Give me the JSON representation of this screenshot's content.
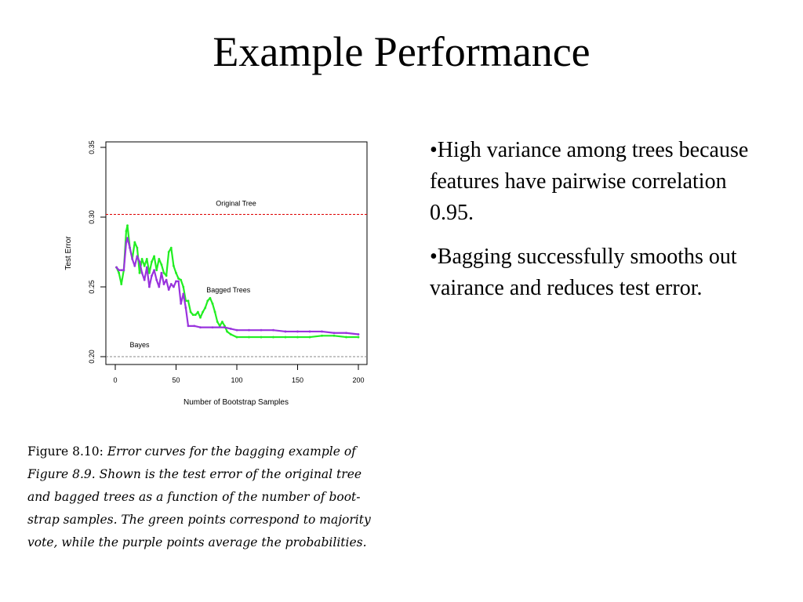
{
  "slide": {
    "title": "Example Performance"
  },
  "bullets": [
    "•High variance among trees because features have pairwise correlation 0.95.",
    "•Bagging successfully smooths out vairance and reduces test error."
  ],
  "caption": {
    "label": "Figure 8.10:",
    "lines": [
      "Error curves for the bagging example of",
      "Figure 8.9. Shown is the test error of the original tree",
      "and bagged trees as a function of the number of boot-",
      "strap samples. The green points correspond to majority",
      "vote, while the purple points average the probabilities."
    ]
  },
  "chart_data": {
    "type": "line",
    "xlabel": "Number of Bootstrap Samples",
    "ylabel": "Test Error",
    "xlim": [
      0,
      200
    ],
    "ylim": [
      0.2,
      0.35
    ],
    "xticks": [
      "0",
      "50",
      "100",
      "150",
      "200"
    ],
    "yticks": [
      "0.20",
      "0.25",
      "0.30",
      "0.35"
    ],
    "grid": false,
    "reference_lines": [
      {
        "label": "Original Tree",
        "value": 0.302,
        "color": "#dd0000",
        "style": "dashed"
      },
      {
        "label": "Bayes",
        "value": 0.2,
        "color": "#888888",
        "style": "dashed"
      }
    ],
    "annotations": [
      {
        "text": "Bagged Trees",
        "x": 75,
        "y": 0.246
      }
    ],
    "series": [
      {
        "color": "#22ee22",
        "x": [
          1,
          3,
          5,
          7,
          9,
          10,
          12,
          14,
          16,
          18,
          20,
          22,
          24,
          26,
          28,
          30,
          32,
          34,
          36,
          38,
          40,
          42,
          44,
          46,
          48,
          50,
          52,
          54,
          56,
          58,
          60,
          62,
          64,
          66,
          68,
          70,
          72,
          74,
          76,
          78,
          80,
          82,
          84,
          86,
          88,
          90,
          92,
          95,
          100,
          110,
          120,
          130,
          140,
          150,
          160,
          170,
          180,
          190,
          200
        ],
        "y": [
          0.264,
          0.26,
          0.252,
          0.262,
          0.29,
          0.294,
          0.278,
          0.27,
          0.282,
          0.278,
          0.26,
          0.27,
          0.265,
          0.27,
          0.26,
          0.268,
          0.272,
          0.262,
          0.27,
          0.266,
          0.26,
          0.258,
          0.275,
          0.278,
          0.265,
          0.26,
          0.256,
          0.255,
          0.25,
          0.24,
          0.24,
          0.232,
          0.23,
          0.23,
          0.232,
          0.228,
          0.232,
          0.235,
          0.24,
          0.242,
          0.238,
          0.232,
          0.225,
          0.222,
          0.225,
          0.222,
          0.218,
          0.216,
          0.214,
          0.214,
          0.214,
          0.214,
          0.214,
          0.214,
          0.214,
          0.215,
          0.215,
          0.214,
          0.214
        ]
      },
      {
        "color": "#9933dd",
        "x": [
          1,
          3,
          5,
          7,
          9,
          10,
          12,
          14,
          16,
          18,
          20,
          22,
          24,
          26,
          28,
          30,
          32,
          34,
          36,
          38,
          40,
          42,
          44,
          46,
          48,
          50,
          52,
          54,
          56,
          58,
          60,
          65,
          70,
          80,
          90,
          95,
          100,
          110,
          120,
          130,
          140,
          150,
          160,
          170,
          180,
          190,
          200
        ],
        "y": [
          0.264,
          0.262,
          0.262,
          0.262,
          0.282,
          0.285,
          0.278,
          0.27,
          0.265,
          0.272,
          0.268,
          0.26,
          0.255,
          0.264,
          0.25,
          0.258,
          0.262,
          0.255,
          0.25,
          0.26,
          0.252,
          0.255,
          0.248,
          0.252,
          0.25,
          0.254,
          0.254,
          0.238,
          0.245,
          0.235,
          0.222,
          0.222,
          0.221,
          0.221,
          0.221,
          0.22,
          0.219,
          0.219,
          0.219,
          0.219,
          0.218,
          0.218,
          0.218,
          0.218,
          0.217,
          0.217,
          0.216
        ]
      }
    ]
  }
}
